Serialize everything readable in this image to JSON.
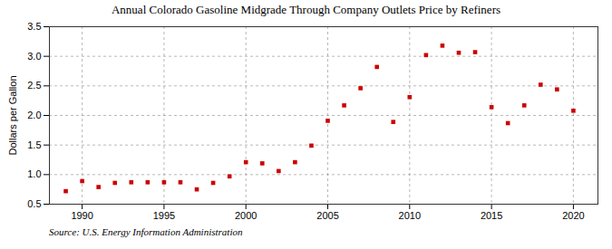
{
  "chart_data": {
    "type": "scatter",
    "title": "Annual Colorado Gasoline Midgrade Through Company Outlets Price by Refiners",
    "ylabel": "Dollars per Gallon",
    "annotations": [
      "Source: U.S. Energy Information Administration"
    ],
    "x": [
      1989,
      1990,
      1991,
      1992,
      1993,
      1994,
      1995,
      1996,
      1997,
      1998,
      1999,
      2000,
      2001,
      2002,
      2003,
      2004,
      2005,
      2006,
      2007,
      2008,
      2009,
      2010,
      2011,
      2012,
      2013,
      2014,
      2015,
      2016,
      2017,
      2018,
      2019,
      2020
    ],
    "values": [
      0.72,
      0.89,
      0.79,
      0.86,
      0.87,
      0.87,
      0.87,
      0.87,
      0.75,
      0.86,
      0.97,
      1.21,
      1.19,
      1.06,
      1.21,
      1.49,
      1.91,
      2.17,
      2.46,
      2.82,
      1.89,
      2.31,
      3.02,
      3.18,
      3.06,
      3.07,
      2.14,
      1.87,
      2.17,
      2.52,
      2.44,
      2.08
    ],
    "color": "#cc0000",
    "marker": "square",
    "xlim": [
      1988.0,
      2021.5
    ],
    "ylim": [
      0.5,
      3.5
    ],
    "xticks": [
      1990,
      1995,
      2000,
      2005,
      2010,
      2015,
      2020
    ],
    "yticks": [
      0.5,
      {
        "value": 1.0,
        "label": "1.0"
      },
      1.5,
      {
        "value": 2.0,
        "label": "2.0"
      },
      2.5,
      {
        "value": 3.0,
        "label": "3.0"
      },
      3.5
    ],
    "grid": true
  }
}
